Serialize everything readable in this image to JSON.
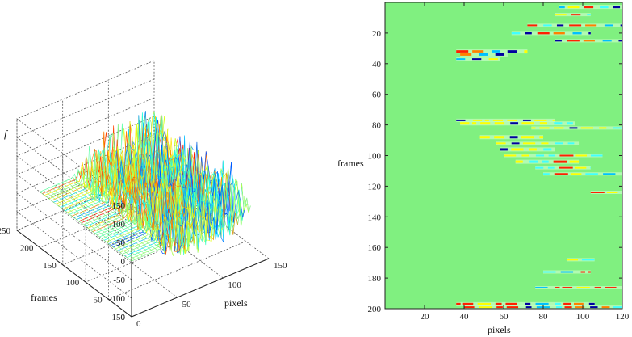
{
  "chart_data": [
    {
      "type": "surface",
      "zlabel": "f",
      "ylabel": "frames",
      "xlabel": "pixels",
      "zlim": [
        -150,
        150
      ],
      "z_ticks": [
        150,
        100,
        50,
        0,
        -50,
        -100,
        -150
      ],
      "ylim": [
        0,
        250
      ],
      "y_ticks": [
        0,
        50,
        100,
        150,
        200,
        250
      ],
      "xlim": [
        0,
        150
      ],
      "x_ticks": [
        0,
        50,
        100,
        150
      ],
      "grid": true,
      "colormap": "jet",
      "description_colors": {
        "flat": "#7ef07e"
      }
    },
    {
      "type": "heatmap",
      "ylabel": "frames",
      "xlabel": "pixels",
      "xlim": [
        0,
        120
      ],
      "ylim": [
        0,
        200
      ],
      "x_ticks": [
        20,
        40,
        60,
        80,
        100,
        120
      ],
      "y_ticks": [
        20,
        40,
        60,
        80,
        100,
        120,
        140,
        160,
        180,
        200
      ],
      "background_color": "#80f080",
      "colormap": "jet"
    }
  ]
}
